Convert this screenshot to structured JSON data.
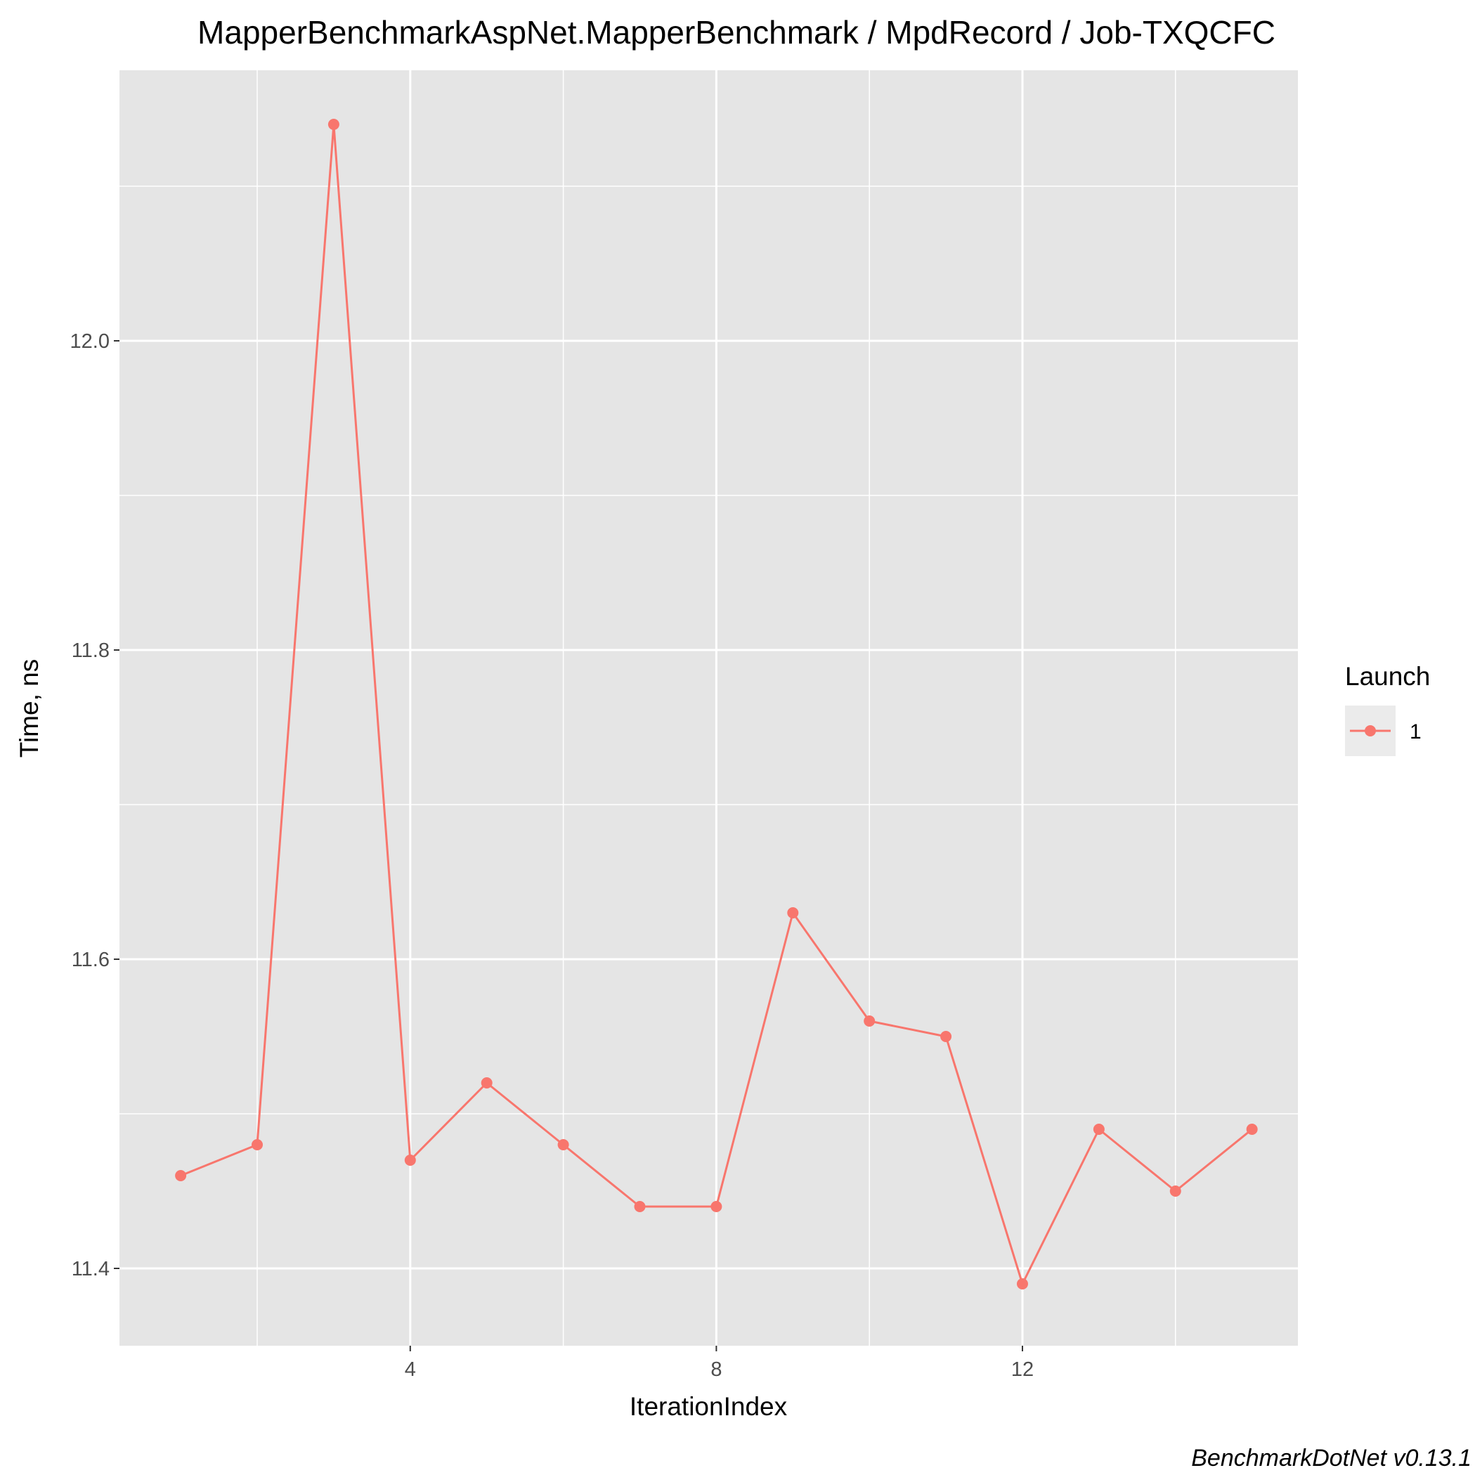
{
  "chart_data": {
    "type": "line",
    "title": "MapperBenchmarkAspNet.MapperBenchmark / MpdRecord / Job-TXQCFC",
    "xlabel": "IterationIndex",
    "ylabel": "Time, ns",
    "caption": "BenchmarkDotNet v0.13.1",
    "xlim": [
      0.2,
      15.6
    ],
    "ylim": [
      11.35,
      12.175
    ],
    "x_ticks": [
      4,
      8,
      12
    ],
    "x_minor": [
      2,
      6,
      10,
      14
    ],
    "y_ticks": [
      11.4,
      11.6,
      11.8,
      12.0
    ],
    "y_tick_labels": [
      "11.4",
      "11.6",
      "11.8",
      "12.0"
    ],
    "y_minor": [
      11.5,
      11.7,
      11.9,
      12.1
    ],
    "grid": true,
    "legend": {
      "title": "Launch",
      "position": "right",
      "entries": [
        "1"
      ]
    },
    "series": [
      {
        "name": "1",
        "color": "#F8766D",
        "x": [
          1,
          2,
          3,
          4,
          5,
          6,
          7,
          8,
          9,
          10,
          11,
          12,
          13,
          14,
          15
        ],
        "y": [
          11.46,
          11.48,
          12.14,
          11.47,
          11.52,
          11.48,
          11.44,
          11.44,
          11.63,
          11.56,
          11.55,
          11.39,
          11.49,
          11.45,
          11.49
        ]
      }
    ]
  },
  "colors": {
    "panel_background": "#E5E5E5",
    "grid_line": "#FFFFFF",
    "series": "#F8766D",
    "legend_key_background": "#EBEBEB"
  }
}
